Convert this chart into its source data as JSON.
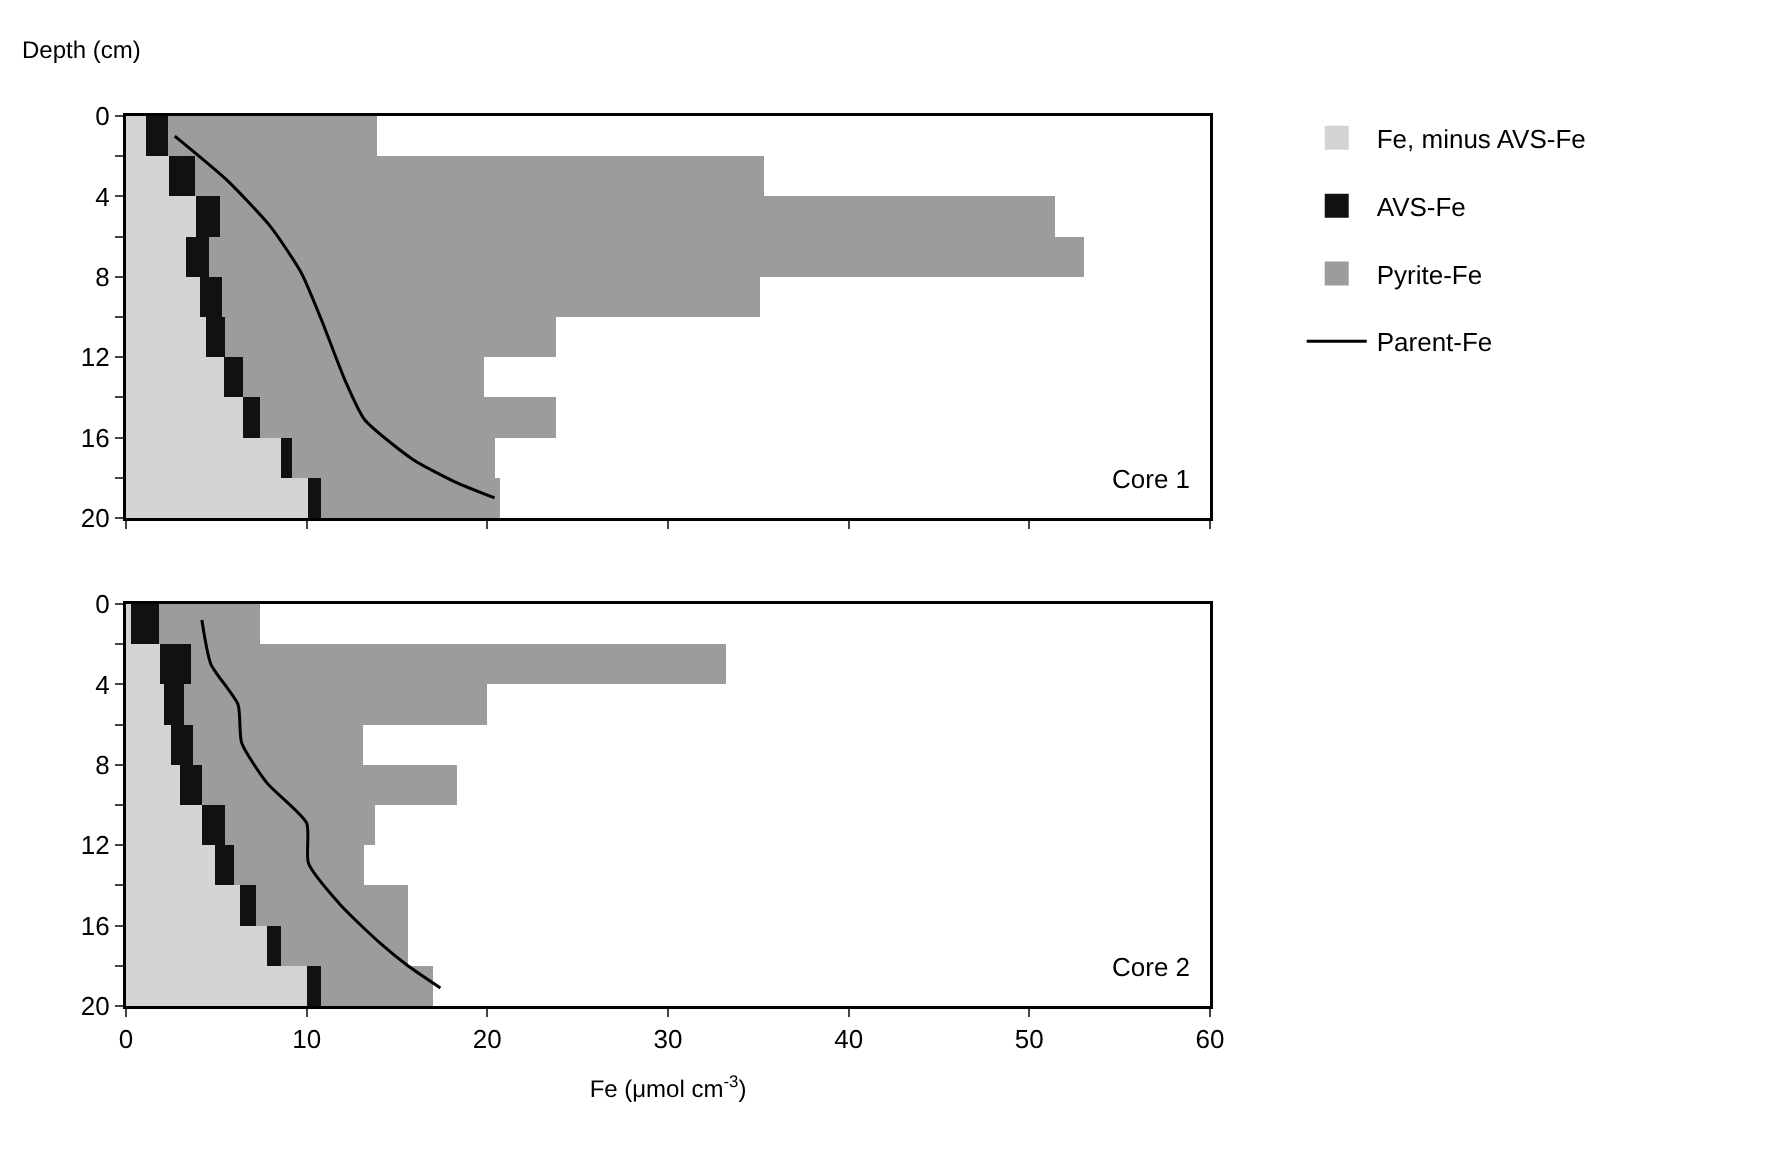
{
  "chart_data": [
    {
      "type": "bar",
      "orientation": "horizontal",
      "stacked": true,
      "ylabel": "Depth (cm)",
      "x": [
        1,
        3,
        5,
        7,
        9,
        11,
        13,
        15,
        17,
        19
      ],
      "xlim": [
        0,
        60
      ],
      "xticks": [
        0,
        10,
        20,
        30,
        40,
        50,
        60
      ],
      "ylim": [
        20,
        0
      ],
      "yticks": [
        0,
        {
          "value": 2,
          "label": null
        },
        4,
        {
          "value": 6,
          "label": null
        },
        8,
        {
          "value": 10,
          "label": null
        },
        12,
        {
          "value": 14,
          "label": null
        },
        16,
        {
          "value": 18,
          "label": null
        },
        20
      ],
      "tick_labels": "y",
      "grid": false,
      "legend": "right",
      "annotations": [
        "Core 1"
      ],
      "series": [
        {
          "name": "Fe, minus AVS-Fe",
          "color": "#d4d4d4",
          "values": [
            1.1,
            2.4,
            3.9,
            3.3,
            4.1,
            4.4,
            5.4,
            6.5,
            8.6,
            10.1
          ]
        },
        {
          "name": "AVS-Fe",
          "color": "#111111",
          "values": [
            1.2,
            1.4,
            1.3,
            1.3,
            1.2,
            1.1,
            1.1,
            0.9,
            0.6,
            0.7
          ]
        },
        {
          "name": "Pyrite-Fe",
          "color": "#9c9c9c",
          "values": [
            11.6,
            31.5,
            46.2,
            48.4,
            29.8,
            18.3,
            13.3,
            16.4,
            11.2,
            9.9
          ]
        },
        {
          "name": "Parent-Fe",
          "type": "line",
          "color": "#000000",
          "x": [
            1.0,
            3.2,
            5.5,
            7.8,
            10.1,
            13.1,
            15.1,
            17.1,
            18.2,
            19.0
          ],
          "values": [
            2.7,
            5.6,
            8.0,
            9.7,
            10.8,
            12.1,
            13.2,
            15.9,
            18.2,
            20.4
          ]
        }
      ]
    },
    {
      "type": "bar",
      "orientation": "horizontal",
      "stacked": true,
      "xlabel": "Fe (μmol cm$^{-3}$)",
      "x": [
        1,
        3,
        5,
        7,
        9,
        11,
        13,
        15,
        17,
        19
      ],
      "xlim": [
        0,
        60
      ],
      "xticks": [
        0,
        10,
        20,
        30,
        40,
        50,
        60
      ],
      "ylim": [
        20,
        0
      ],
      "yticks": [
        0,
        {
          "value": 2,
          "label": null
        },
        4,
        {
          "value": 6,
          "label": null
        },
        8,
        {
          "value": 10,
          "label": null
        },
        12,
        {
          "value": 14,
          "label": null
        },
        16,
        {
          "value": 18,
          "label": null
        },
        20
      ],
      "grid": false,
      "legend": false,
      "annotations": [
        "Core 2"
      ],
      "series": [
        {
          "color": "#d4d4d4",
          "values": [
            0.3,
            1.9,
            2.1,
            2.5,
            3.0,
            4.2,
            4.9,
            6.3,
            7.8,
            10.0
          ]
        },
        {
          "color": "#111111",
          "values": [
            1.5,
            1.7,
            1.1,
            1.2,
            1.2,
            1.3,
            1.1,
            0.9,
            0.8,
            0.8
          ]
        },
        {
          "color": "#9c9c9c",
          "values": [
            5.6,
            29.6,
            16.8,
            9.4,
            14.1,
            8.3,
            7.2,
            8.4,
            7.0,
            6.2
          ]
        },
        {
          "type": "line",
          "color": "#000000",
          "x": [
            0.8,
            3.0,
            5.0,
            6.9,
            8.9,
            10.9,
            12.9,
            15.0,
            16.9,
            18.0,
            19.1
          ],
          "values": [
            4.2,
            4.7,
            6.2,
            6.4,
            7.8,
            10.0,
            10.1,
            11.9,
            14.1,
            15.6,
            17.4
          ]
        }
      ]
    }
  ]
}
